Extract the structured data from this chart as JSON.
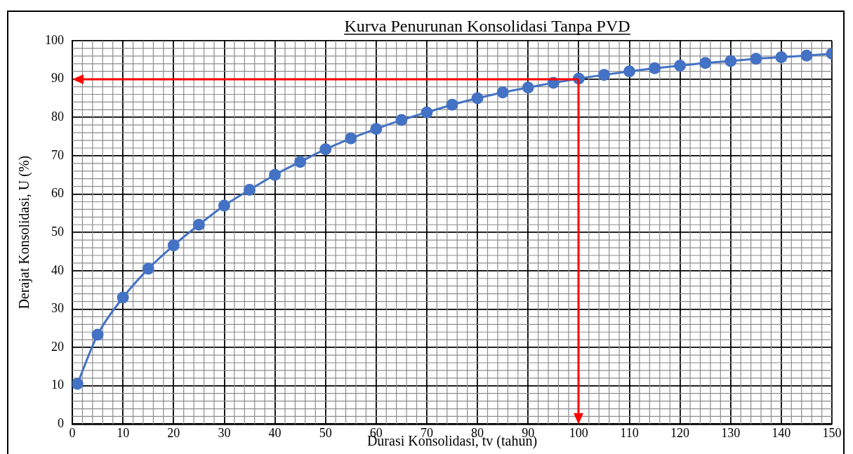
{
  "chart_data": {
    "type": "line",
    "title": "Kurva Penurunan Konsolidasi Tanpa PVD",
    "xlabel": "Durasi Konsolidasi, tv (tahun)",
    "ylabel": "Derajat Konsolidasi, U (%)",
    "xlim": [
      0,
      150
    ],
    "xticks": [
      0,
      10,
      20,
      30,
      40,
      50,
      60,
      70,
      80,
      90,
      100,
      110,
      120,
      130,
      140,
      150
    ],
    "ylim": [
      0,
      100
    ],
    "yticks": [
      0,
      10,
      20,
      30,
      40,
      50,
      60,
      70,
      80,
      90,
      100
    ],
    "grid": true,
    "legend": false,
    "marker": "circle",
    "series": [
      {
        "color": "#4472c4",
        "x": [
          1,
          5,
          10,
          15,
          20,
          25,
          30,
          35,
          40,
          45,
          50,
          55,
          60,
          65,
          70,
          75,
          80,
          85,
          90,
          95,
          100,
          105,
          110,
          115,
          120,
          125,
          130,
          135,
          140,
          145,
          150
        ],
        "values": [
          10.5,
          23.3,
          33,
          40.5,
          46.6,
          52,
          57,
          61.1,
          65,
          68.4,
          71.7,
          74.5,
          77,
          79.3,
          81.3,
          83.3,
          85,
          86.5,
          87.8,
          89,
          90.1,
          91.1,
          92,
          92.8,
          93.5,
          94.2,
          94.7,
          95.3,
          95.7,
          96.1,
          96.6
        ]
      }
    ],
    "ref_lines": [
      {
        "axis": "y",
        "value": 90,
        "color": "#ff0000"
      },
      {
        "axis": "x",
        "value": 100,
        "color": "#ff0000"
      }
    ]
  }
}
